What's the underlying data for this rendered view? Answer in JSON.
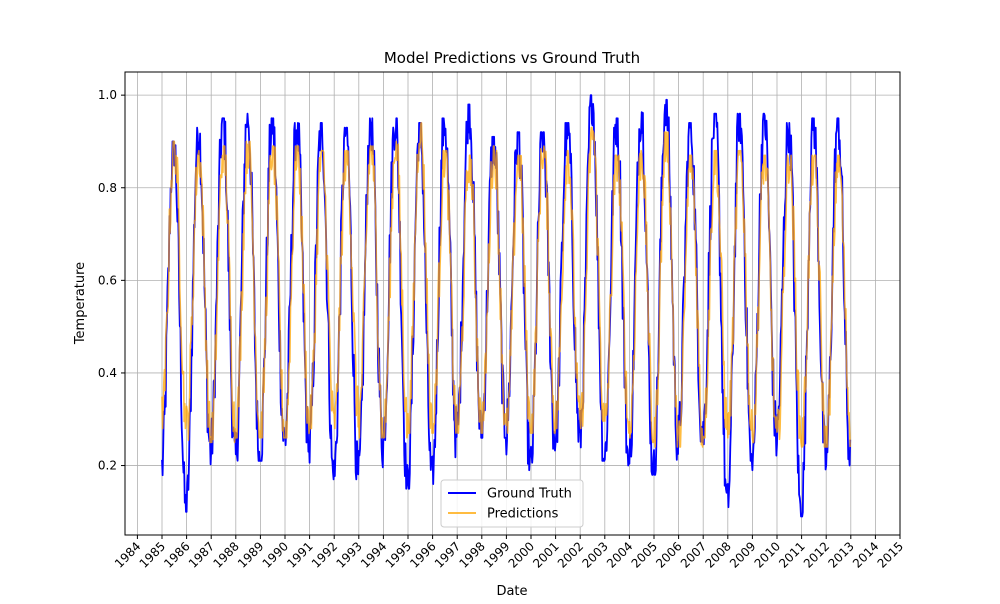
{
  "chart_data": {
    "type": "line",
    "title": "Model Predictions vs Ground Truth",
    "xlabel": "Date",
    "ylabel": "Temperature",
    "xlim": [
      "1983-07-01",
      "2015-01-01"
    ],
    "ylim": [
      0.05,
      1.05
    ],
    "x_ticks": [
      "1984",
      "1985",
      "1986",
      "1987",
      "1988",
      "1989",
      "1990",
      "1991",
      "1992",
      "1993",
      "1994",
      "1995",
      "1996",
      "1997",
      "1998",
      "1999",
      "2000",
      "2001",
      "2002",
      "2003",
      "2004",
      "2005",
      "2006",
      "2007",
      "2008",
      "2009",
      "2010",
      "2011",
      "2012",
      "2013",
      "2014",
      "2015"
    ],
    "y_ticks": [
      "0.2",
      "0.4",
      "0.6",
      "0.8",
      "1.0"
    ],
    "grid": true,
    "legend_position": "lower center",
    "series": [
      {
        "name": "Ground Truth",
        "color": "#0000ff",
        "season_peaks": [
          0.9,
          0.93,
          0.95,
          0.96,
          0.95,
          0.94,
          0.94,
          0.93,
          0.95,
          0.95,
          0.94,
          0.95,
          0.98,
          0.91,
          0.92,
          0.92,
          0.94,
          1.0,
          0.95,
          0.97,
          0.99,
          0.94,
          0.96,
          0.96,
          0.96,
          0.94,
          0.95
        ],
        "season_troughs": [
          0.19,
          0.1,
          0.23,
          0.21,
          0.21,
          0.25,
          0.23,
          0.17,
          0.17,
          0.25,
          0.15,
          0.16,
          0.26,
          0.26,
          0.26,
          0.19,
          0.25,
          0.26,
          0.21,
          0.2,
          0.18,
          0.25,
          0.26,
          0.11,
          0.19,
          0.26,
          0.09,
          0.2,
          0.21
        ]
      },
      {
        "name": "Predictions",
        "color": "#ffa500",
        "season_peaks": [
          0.9,
          0.88,
          0.89,
          0.9,
          0.89,
          0.89,
          0.88,
          0.88,
          0.89,
          0.9,
          0.94,
          0.88,
          0.87,
          0.89,
          0.87,
          0.89,
          0.88,
          0.93,
          0.87,
          0.88,
          0.92,
          0.87,
          0.88,
          0.88,
          0.87,
          0.87,
          0.87
        ],
        "season_troughs": [
          0.3,
          0.28,
          0.25,
          0.27,
          0.26,
          0.26,
          0.28,
          0.28,
          0.3,
          0.26,
          0.27,
          0.27,
          0.27,
          0.28,
          0.27,
          0.27,
          0.29,
          0.28,
          0.28,
          0.27,
          0.25,
          0.24,
          0.26,
          0.27,
          0.26,
          0.25,
          0.25,
          0.24,
          0.28
        ]
      }
    ]
  }
}
